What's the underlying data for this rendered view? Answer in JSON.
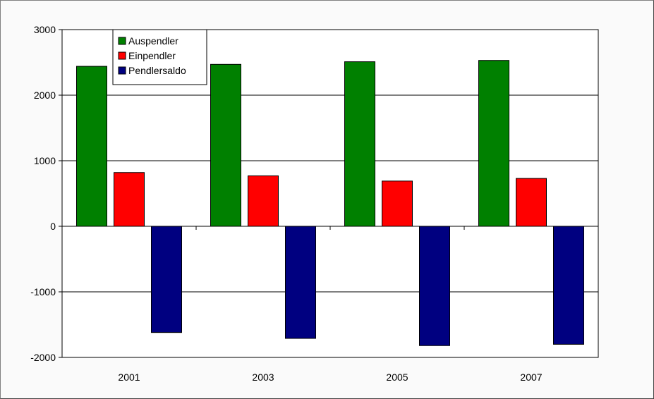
{
  "chart_data": {
    "type": "bar",
    "categories": [
      "2001",
      "2003",
      "2005",
      "2007"
    ],
    "series": [
      {
        "name": "Auspendler",
        "color": "#008000",
        "values": [
          2440,
          2470,
          2510,
          2530
        ]
      },
      {
        "name": "Einpendler",
        "color": "#ff0000",
        "values": [
          820,
          770,
          690,
          730
        ]
      },
      {
        "name": "Pendlersaldo",
        "color": "#000080",
        "values": [
          -1620,
          -1710,
          -1820,
          -1800
        ]
      }
    ],
    "ylim": [
      -2000,
      3000
    ],
    "yticks": [
      "3000",
      "2000",
      "1000",
      "0",
      "-1000",
      "-2000"
    ],
    "ytick_values": [
      3000,
      2000,
      1000,
      0,
      -1000,
      -2000
    ],
    "grid": true,
    "legend_position": "top-left"
  }
}
